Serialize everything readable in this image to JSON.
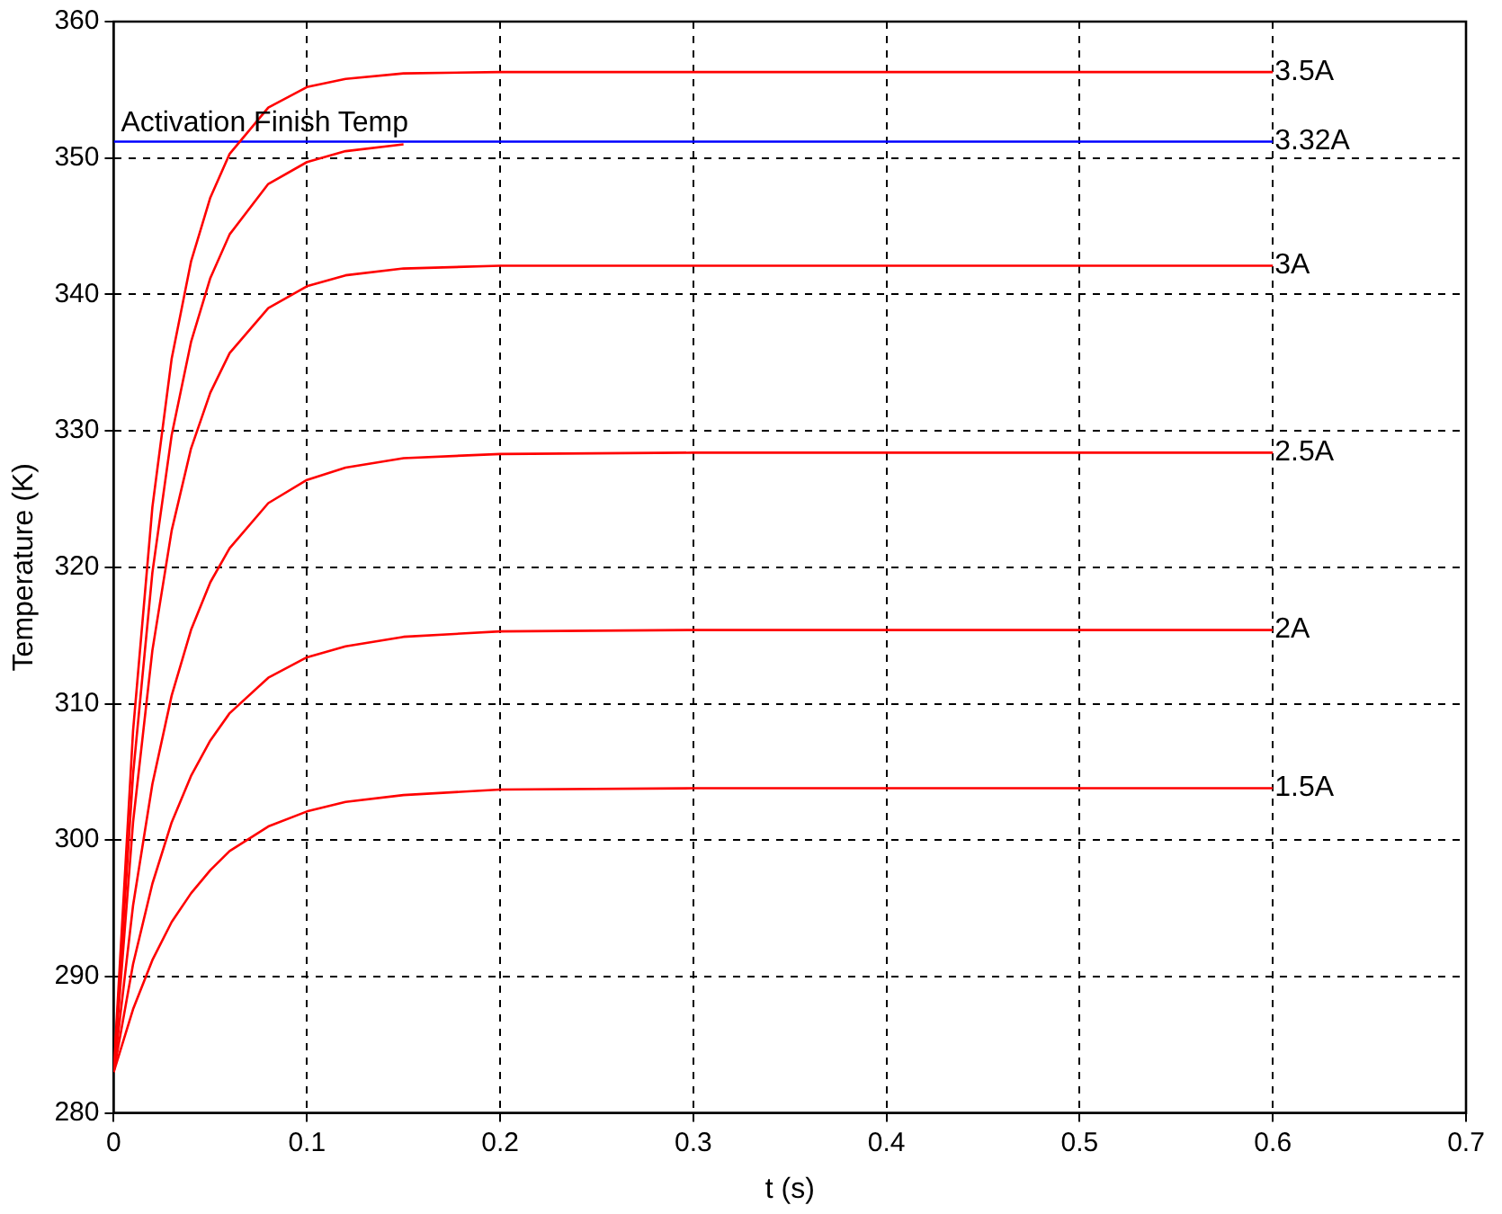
{
  "chart_data": {
    "type": "line",
    "xlabel": "t (s)",
    "ylabel": "Temperature (K)",
    "xlim": [
      0,
      0.7
    ],
    "xticks": [
      0,
      0.1,
      0.2,
      0.3,
      0.4,
      0.5,
      0.6,
      0.7
    ],
    "ylim": [
      280,
      360
    ],
    "yticks": [
      280,
      290,
      300,
      310,
      320,
      330,
      340,
      350,
      360
    ],
    "grid": true,
    "legend": false,
    "marker": "none",
    "line_style": "solid",
    "annotations": [
      {
        "text": "Activation Finish Temp",
        "x": 0,
        "y": 351.2
      }
    ],
    "series": [
      {
        "name": "3.5A",
        "color": "#ff0000",
        "x": [
          0,
          0.01,
          0.02,
          0.03,
          0.04,
          0.05,
          0.06,
          0.08,
          0.1,
          0.12,
          0.15,
          0.2,
          0.6
        ],
        "values": [
          283,
          308.0,
          324.4,
          335.3,
          342.4,
          347.1,
          350.3,
          353.7,
          355.2,
          355.8,
          356.2,
          356.3,
          356.3
        ]
      },
      {
        "color": "#ff0000",
        "x": [
          0,
          0.01,
          0.02,
          0.03,
          0.04,
          0.05,
          0.06,
          0.08,
          0.1,
          0.12,
          0.15
        ],
        "values": [
          283,
          304.8,
          319.6,
          329.7,
          336.5,
          341.2,
          344.4,
          348.1,
          349.7,
          350.5,
          351.0
        ]
      },
      {
        "name": "3.32A",
        "color": "#0000ff",
        "x": [
          0,
          0.6
        ],
        "values": [
          351.2,
          351.2
        ]
      },
      {
        "name": "3A",
        "color": "#ff0000",
        "x": [
          0,
          0.01,
          0.02,
          0.03,
          0.04,
          0.05,
          0.06,
          0.08,
          0.1,
          0.12,
          0.15,
          0.2,
          0.6
        ],
        "values": [
          283,
          301.3,
          313.9,
          322.7,
          328.7,
          332.8,
          335.7,
          339.0,
          340.6,
          341.4,
          341.9,
          342.1,
          342.1
        ]
      },
      {
        "name": "2.5A",
        "color": "#ff0000",
        "x": [
          0,
          0.01,
          0.02,
          0.03,
          0.04,
          0.05,
          0.06,
          0.08,
          0.1,
          0.12,
          0.15,
          0.2,
          0.3,
          0.6
        ],
        "values": [
          283,
          295.2,
          304.1,
          310.6,
          315.4,
          318.9,
          321.4,
          324.7,
          326.4,
          327.3,
          328.0,
          328.3,
          328.4,
          328.4
        ]
      },
      {
        "name": "2A",
        "color": "#ff0000",
        "x": [
          0,
          0.01,
          0.02,
          0.03,
          0.04,
          0.05,
          0.06,
          0.08,
          0.1,
          0.12,
          0.15,
          0.2,
          0.3,
          0.6
        ],
        "values": [
          283,
          290.9,
          296.8,
          301.3,
          304.7,
          307.3,
          309.3,
          311.9,
          313.4,
          314.2,
          314.9,
          315.3,
          315.4,
          315.4
        ]
      },
      {
        "name": "1.5A",
        "color": "#ff0000",
        "x": [
          0,
          0.01,
          0.02,
          0.03,
          0.04,
          0.05,
          0.06,
          0.08,
          0.1,
          0.12,
          0.15,
          0.2,
          0.3,
          0.6
        ],
        "values": [
          283,
          287.6,
          291.2,
          294.0,
          296.1,
          297.8,
          299.2,
          301.0,
          302.1,
          302.8,
          303.3,
          303.7,
          303.8,
          303.8
        ]
      }
    ]
  }
}
